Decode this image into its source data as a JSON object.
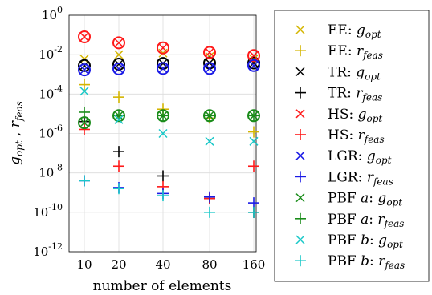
{
  "chart_data": {
    "type": "scatter",
    "xlabel": "number of elements",
    "ylabel": "g_opt , r_feas",
    "x_scale": "categorical",
    "y_scale": "log",
    "categories": [
      "10",
      "20",
      "40",
      "80",
      "160"
    ],
    "ylim_exponents": [
      -12,
      0
    ],
    "ytick_labels": [
      "10-12",
      "10-10",
      "10-8",
      "10-6",
      "10-4",
      "10-2",
      "100"
    ],
    "grid": true,
    "legend_position": "outside-right",
    "series": [
      {
        "name": "EE: g_opt",
        "label_base": "EE:",
        "label_var": "g",
        "label_sub": "opt",
        "marker": "x",
        "color": "#D4B500",
        "values": [
          0.006,
          0.01,
          0.012,
          0.008,
          0.006
        ]
      },
      {
        "name": "EE: r_feas",
        "label_base": "EE:",
        "label_var": "r",
        "label_sub": "feas",
        "marker": "+",
        "color": "#D4B500",
        "values": [
          0.0003,
          7e-05,
          1.7e-05,
          6e-06,
          1.2e-06
        ]
      },
      {
        "name": "TR: g_opt",
        "label_base": "TR:",
        "label_var": "g",
        "label_sub": "opt",
        "marker": "x",
        "color": "#000000",
        "values": [
          0.0028,
          0.0033,
          0.0036,
          0.0038,
          0.0038
        ]
      },
      {
        "name": "TR: r_feas",
        "label_base": "TR:",
        "label_var": "r",
        "label_sub": "feas",
        "marker": "+",
        "color": "#000000",
        "values": [
          4e-06,
          1.2e-07,
          7e-09,
          5e-10,
          1e-10
        ]
      },
      {
        "name": "HS: g_opt",
        "label_base": "HS:",
        "label_var": "g",
        "label_sub": "opt",
        "marker": "x",
        "color": "#FF1A1A",
        "values": [
          0.08,
          0.04,
          0.022,
          0.013,
          0.009
        ]
      },
      {
        "name": "HS: r_feas",
        "label_base": "HS:",
        "label_var": "r",
        "label_sub": "feas",
        "marker": "+",
        "color": "#FF1A1A",
        "values": [
          1.6e-06,
          2.2e-08,
          2e-09,
          5e-10,
          2.2e-08
        ]
      },
      {
        "name": "LGR: g_opt",
        "label_base": "LGR:",
        "label_var": "g",
        "label_sub": "opt",
        "marker": "x",
        "color": "#1A1AE6",
        "values": [
          0.0017,
          0.0019,
          0.002,
          0.002,
          0.0028
        ]
      },
      {
        "name": "LGR: r_feas",
        "label_base": "LGR:",
        "label_var": "r",
        "label_sub": "feas",
        "marker": "+",
        "color": "#1A1AE6",
        "values": [
          4e-09,
          1.8e-09,
          9e-10,
          6e-10,
          3e-10
        ]
      },
      {
        "name": "PBF a: g_opt",
        "label_base": "PBF",
        "label_italic": "a",
        "label_var": "g",
        "label_sub": "opt",
        "marker": "x",
        "color": "#1A8C1A",
        "values": [
          3.5e-06,
          8e-06,
          8e-06,
          8e-06,
          8e-06
        ]
      },
      {
        "name": "PBF a: r_feas",
        "label_base": "PBF",
        "label_italic": "a",
        "label_var": "r",
        "label_sub": "feas",
        "marker": "+",
        "color": "#1A8C1A",
        "values": [
          1.2e-05,
          8e-06,
          8e-06,
          8e-06,
          8e-06
        ]
      },
      {
        "name": "PBF b: g_opt",
        "label_base": "PBF",
        "label_italic": "b",
        "label_var": "g",
        "label_sub": "opt",
        "marker": "x",
        "color": "#1AC8C8",
        "values": [
          0.00014,
          5e-06,
          1e-06,
          4e-07,
          4e-07
        ]
      },
      {
        "name": "PBF b: r_feas",
        "label_base": "PBF",
        "label_italic": "b",
        "label_var": "r",
        "label_sub": "feas",
        "marker": "+",
        "color": "#1AC8C8",
        "values": [
          4e-09,
          1.6e-09,
          7e-10,
          1e-10,
          1e-10
        ]
      }
    ],
    "circled_series": [
      "HS: g_opt",
      "TR: g_opt",
      "LGR: g_opt",
      "PBF a: g_opt"
    ]
  }
}
